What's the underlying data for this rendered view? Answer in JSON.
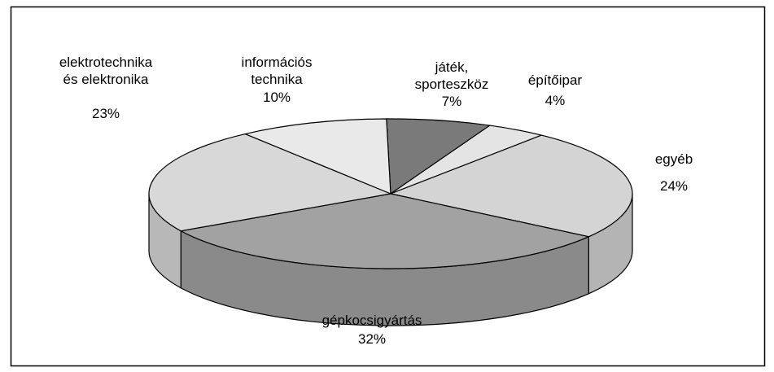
{
  "chart_data": {
    "type": "pie3d",
    "categories": [
      "játék,\nsporteszköz",
      "építőipar",
      "egyéb",
      "gépkocsigyártás",
      "elektrotechnika\nés elektronika",
      "információs\ntechnika"
    ],
    "values": [
      7,
      4,
      24,
      32,
      23,
      10
    ],
    "value_labels": [
      "7%",
      "4%",
      "24%",
      "32%",
      "23%",
      "10%"
    ],
    "colors": [
      "#7a7a7a",
      "#e4e4e4",
      "#d4d4d4",
      "#a2a2a2",
      "#d8d8d8",
      "#e9e9e9"
    ]
  }
}
